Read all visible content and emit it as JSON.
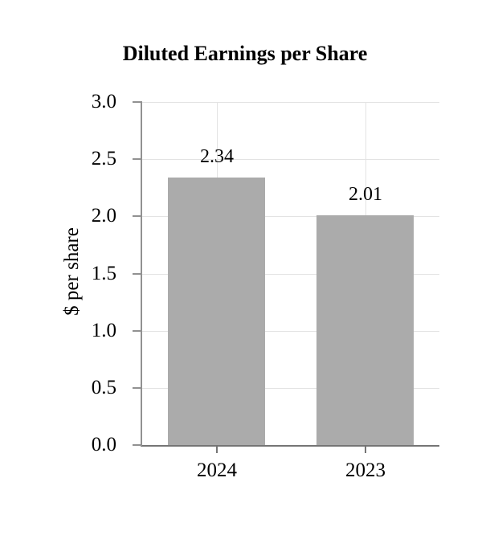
{
  "chart_data": {
    "type": "bar",
    "title": "Diluted Earnings per Share",
    "categories": [
      "2024",
      "2023"
    ],
    "values": [
      2.34,
      2.01
    ],
    "value_labels": [
      "2.34",
      "2.01"
    ],
    "xlabel": "",
    "ylabel": "$ per share",
    "ylim": [
      0.0,
      3.0
    ],
    "ytick_labels": [
      "0.0",
      "0.5",
      "1.0",
      "1.5",
      "2.0",
      "2.5",
      "3.0"
    ],
    "grid": true,
    "legend": "none",
    "bar_color": "#ababab",
    "grid_color": "#e3e3e3",
    "axis_color": "#8a8a8a",
    "text_color": "#000000",
    "background_color": "#ffffff"
  }
}
